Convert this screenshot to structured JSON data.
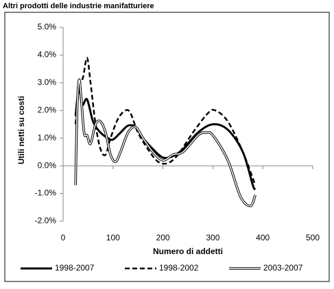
{
  "chart_data": {
    "type": "line",
    "title": "Altri prodotti delle industrie manifatturiere",
    "x_label": "Numero di addetti",
    "y_label": "Utili netti su costi",
    "xlim": [
      0,
      500
    ],
    "xticks": [
      0,
      100,
      200,
      300,
      400,
      500
    ],
    "ylim": [
      -2,
      5
    ],
    "yticks": [
      {
        "value": -2,
        "label": "-2.0%"
      },
      {
        "value": -1,
        "label": "-1.0%"
      },
      {
        "value": 0,
        "label": "0.0%"
      },
      {
        "value": 1,
        "label": "1.0%"
      },
      {
        "value": 2,
        "label": "2.0%"
      },
      {
        "value": 3,
        "label": "3.0%"
      },
      {
        "value": 4,
        "label": "4.0%"
      },
      {
        "value": 5,
        "label": "5.0%"
      }
    ],
    "grid": false,
    "legend": "bottom",
    "series": [
      {
        "name": "1998-2007",
        "color": "#000000",
        "line_style": "solid",
        "x": [
          25,
          32,
          38,
          48,
          60,
          75,
          90,
          100,
          115,
          130,
          145,
          160,
          180,
          200,
          220,
          240,
          270,
          300,
          330,
          360,
          380,
          385
        ],
        "values": [
          1.8,
          2.9,
          2.2,
          2.4,
          1.6,
          1.2,
          1.0,
          0.95,
          1.2,
          1.45,
          1.4,
          1.0,
          0.6,
          0.3,
          0.35,
          0.6,
          1.2,
          1.5,
          1.3,
          0.5,
          -0.7,
          -0.85
        ]
      },
      {
        "name": "1998-2002",
        "color": "#000000",
        "line_style": "dashed",
        "x": [
          25,
          32,
          40,
          48,
          55,
          65,
          75,
          85,
          95,
          110,
          125,
          135,
          150,
          170,
          190,
          210,
          230,
          260,
          290,
          305,
          330,
          360,
          385
        ],
        "values": [
          1.5,
          2.8,
          3.2,
          3.9,
          3.0,
          1.5,
          0.6,
          0.4,
          1.0,
          1.7,
          2.0,
          1.9,
          1.2,
          0.6,
          0.15,
          0.1,
          0.4,
          1.2,
          1.9,
          2.0,
          1.6,
          0.5,
          -0.7
        ]
      },
      {
        "name": "2003-2007",
        "color": "#000000",
        "line_style": "double",
        "x": [
          25,
          28,
          32,
          36,
          42,
          48,
          55,
          65,
          75,
          85,
          95,
          105,
          115,
          130,
          145,
          160,
          180,
          200,
          220,
          240,
          270,
          285,
          300,
          330,
          355,
          375,
          385
        ],
        "values": [
          -0.7,
          2.0,
          3.1,
          2.5,
          1.2,
          1.1,
          0.8,
          1.5,
          1.6,
          1.2,
          0.4,
          0.15,
          0.5,
          1.2,
          1.4,
          1.0,
          0.5,
          0.2,
          0.4,
          0.5,
          1.1,
          1.2,
          1.1,
          0.2,
          -1.1,
          -1.45,
          -1.05
        ]
      }
    ]
  }
}
